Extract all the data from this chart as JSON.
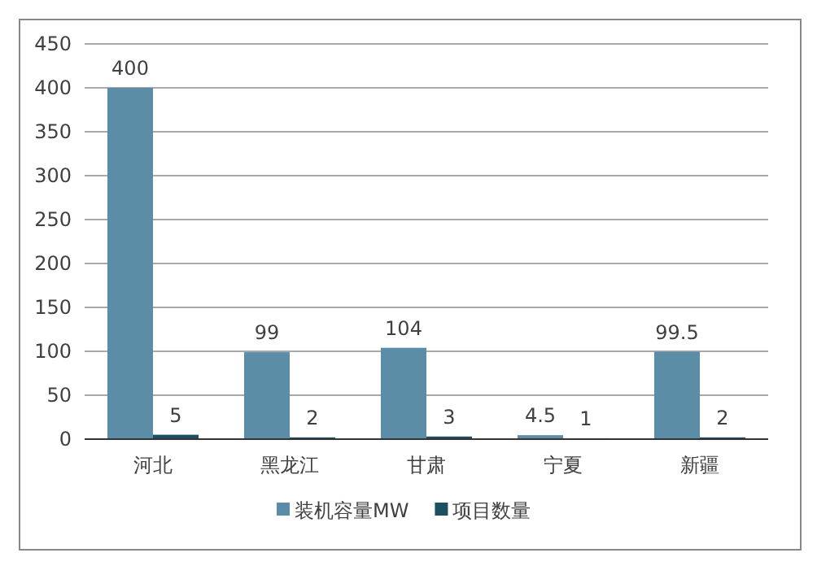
{
  "chart_data": {
    "type": "bar",
    "categories": [
      "河北",
      "黑龙江",
      "甘肃",
      "宁夏",
      "新疆"
    ],
    "series": [
      {
        "name": "装机容量MW",
        "color": "#5b8da6",
        "values": [
          400,
          99,
          104,
          4.5,
          99.5
        ]
      },
      {
        "name": "项目数量",
        "color": "#1d4f63",
        "values": [
          5,
          2,
          3,
          1,
          2
        ]
      }
    ],
    "ylim": [
      0,
      450
    ],
    "yticks": [
      0,
      50,
      100,
      150,
      200,
      250,
      300,
      350,
      400,
      450
    ],
    "grid": "y",
    "legend": "bottom",
    "data_labels": true
  }
}
